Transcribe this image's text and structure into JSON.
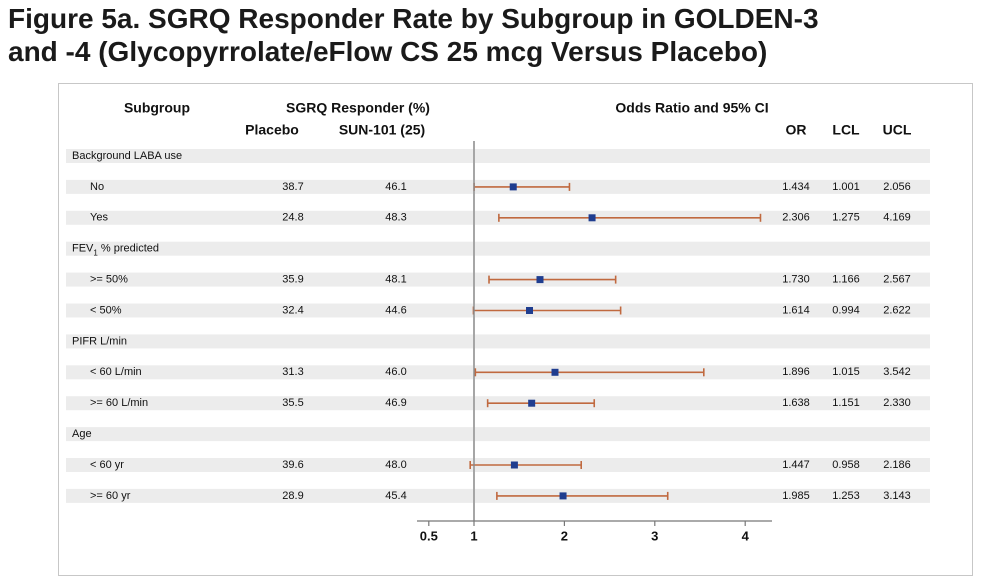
{
  "title_lines": [
    "Figure 5a. SGRQ Responder Rate by Subgroup in GOLDEN-3",
    "and -4 (Glycopyrrolate/eFlow CS 25 mcg Versus Placebo)"
  ],
  "colors": {
    "marker": "#1f3d8f",
    "ci_line": "#c0693f",
    "ref_line": "#888888",
    "band": "#ececec",
    "frame": "#c7c7c7"
  },
  "chart_data": {
    "type": "forest",
    "headers": {
      "subgroup": "Subgroup",
      "responder": "SGRQ Responder (%)",
      "placebo": "Placebo",
      "active": "SUN-101 (25)",
      "odds_ratio": "Odds Ratio and 95% CI",
      "or": "OR",
      "lcl": "LCL",
      "ucl": "UCL"
    },
    "x_ticks": [
      {
        "label": "0.5",
        "value": 0.5
      },
      {
        "label": "1",
        "value": 1
      },
      {
        "label": "2",
        "value": 2
      },
      {
        "label": "3",
        "value": 3
      },
      {
        "label": "4",
        "value": 4
      }
    ],
    "reference_value": 1,
    "xlim": [
      0.5,
      4.3
    ],
    "rows": [
      {
        "kind": "group",
        "label": "Background LABA use"
      },
      {
        "kind": "item",
        "label": "No",
        "placebo": "38.7",
        "active": "46.1",
        "or": 1.434,
        "lcl": 1.001,
        "ucl": 2.056
      },
      {
        "kind": "item",
        "label": "Yes",
        "placebo": "24.8",
        "active": "48.3",
        "or": 2.306,
        "lcl": 1.275,
        "ucl": 4.169
      },
      {
        "kind": "group",
        "label": "FEV",
        "sub": "1",
        "suffix": " % predicted"
      },
      {
        "kind": "item",
        "label": ">= 50%",
        "placebo": "35.9",
        "active": "48.1",
        "or": 1.73,
        "lcl": 1.166,
        "ucl": 2.567
      },
      {
        "kind": "item",
        "label": "< 50%",
        "placebo": "32.4",
        "active": "44.6",
        "or": 1.614,
        "lcl": 0.994,
        "ucl": 2.622
      },
      {
        "kind": "group",
        "label": "PIFR L/min"
      },
      {
        "kind": "item",
        "label": "< 60 L/min",
        "placebo": "31.3",
        "active": "46.0",
        "or": 1.896,
        "lcl": 1.015,
        "ucl": 3.542
      },
      {
        "kind": "item",
        "label": ">= 60 L/min",
        "placebo": "35.5",
        "active": "46.9",
        "or": 1.638,
        "lcl": 1.151,
        "ucl": 2.33
      },
      {
        "kind": "group",
        "label": "Age"
      },
      {
        "kind": "item",
        "label": "< 60 yr",
        "placebo": "39.6",
        "active": "48.0",
        "or": 1.447,
        "lcl": 0.958,
        "ucl": 2.186
      },
      {
        "kind": "item",
        "label": ">= 60 yr",
        "placebo": "28.9",
        "active": "45.4",
        "or": 1.985,
        "lcl": 1.253,
        "ucl": 3.143
      }
    ]
  }
}
